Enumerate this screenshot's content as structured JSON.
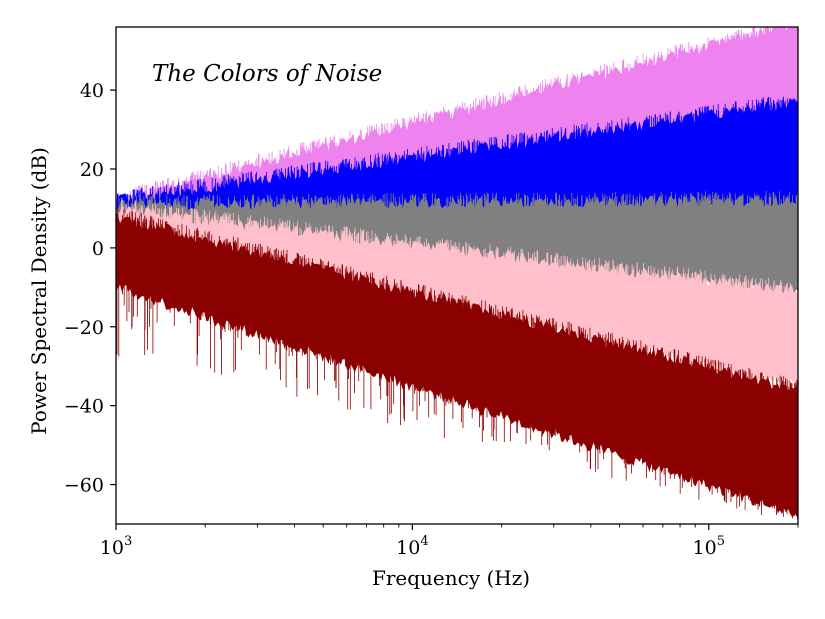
{
  "chart_data": {
    "type": "area",
    "title": "The Colors of Noise",
    "xlabel": "Frequency (Hz)",
    "ylabel": "Power Spectral Density (dB)",
    "xscale": "log",
    "xlim": [
      1000,
      200000
    ],
    "ylim": [
      -70,
      56
    ],
    "grid": false,
    "x_ticks": [
      {
        "value": 1000,
        "base": "10",
        "exp": "3"
      },
      {
        "value": 10000,
        "base": "10",
        "exp": "4"
      },
      {
        "value": 100000,
        "base": "10",
        "exp": "5"
      }
    ],
    "y_ticks": [
      {
        "value": 40,
        "label": "40"
      },
      {
        "value": 20,
        "label": "20"
      },
      {
        "value": 0,
        "label": "0"
      },
      {
        "value": -20,
        "label": "−20"
      },
      {
        "value": -40,
        "label": "−40"
      },
      {
        "value": -60,
        "label": "−60"
      }
    ],
    "series": [
      {
        "color": "#ee82ee",
        "x": [
          1000,
          200000
        ],
        "upper": [
          12,
          57
        ],
        "lower": [
          7,
          20
        ]
      },
      {
        "color": "#0000ff",
        "x": [
          1000,
          200000
        ],
        "upper": [
          12,
          37
        ],
        "lower": [
          7,
          10
        ]
      },
      {
        "color": "#808080",
        "x": [
          1000,
          200000
        ],
        "upper": [
          11,
          12
        ],
        "lower": [
          6,
          -12
        ]
      },
      {
        "color": "#ffc0cb",
        "x": [
          1000,
          200000
        ],
        "upper": [
          10,
          -11
        ],
        "lower": [
          4,
          -35
        ]
      },
      {
        "color": "#8b0000",
        "x": [
          1000,
          200000
        ],
        "upper": [
          8,
          -36
        ],
        "lower": [
          -10,
          -68
        ],
        "spike_floor": [
          -28,
          -70
        ]
      }
    ]
  }
}
